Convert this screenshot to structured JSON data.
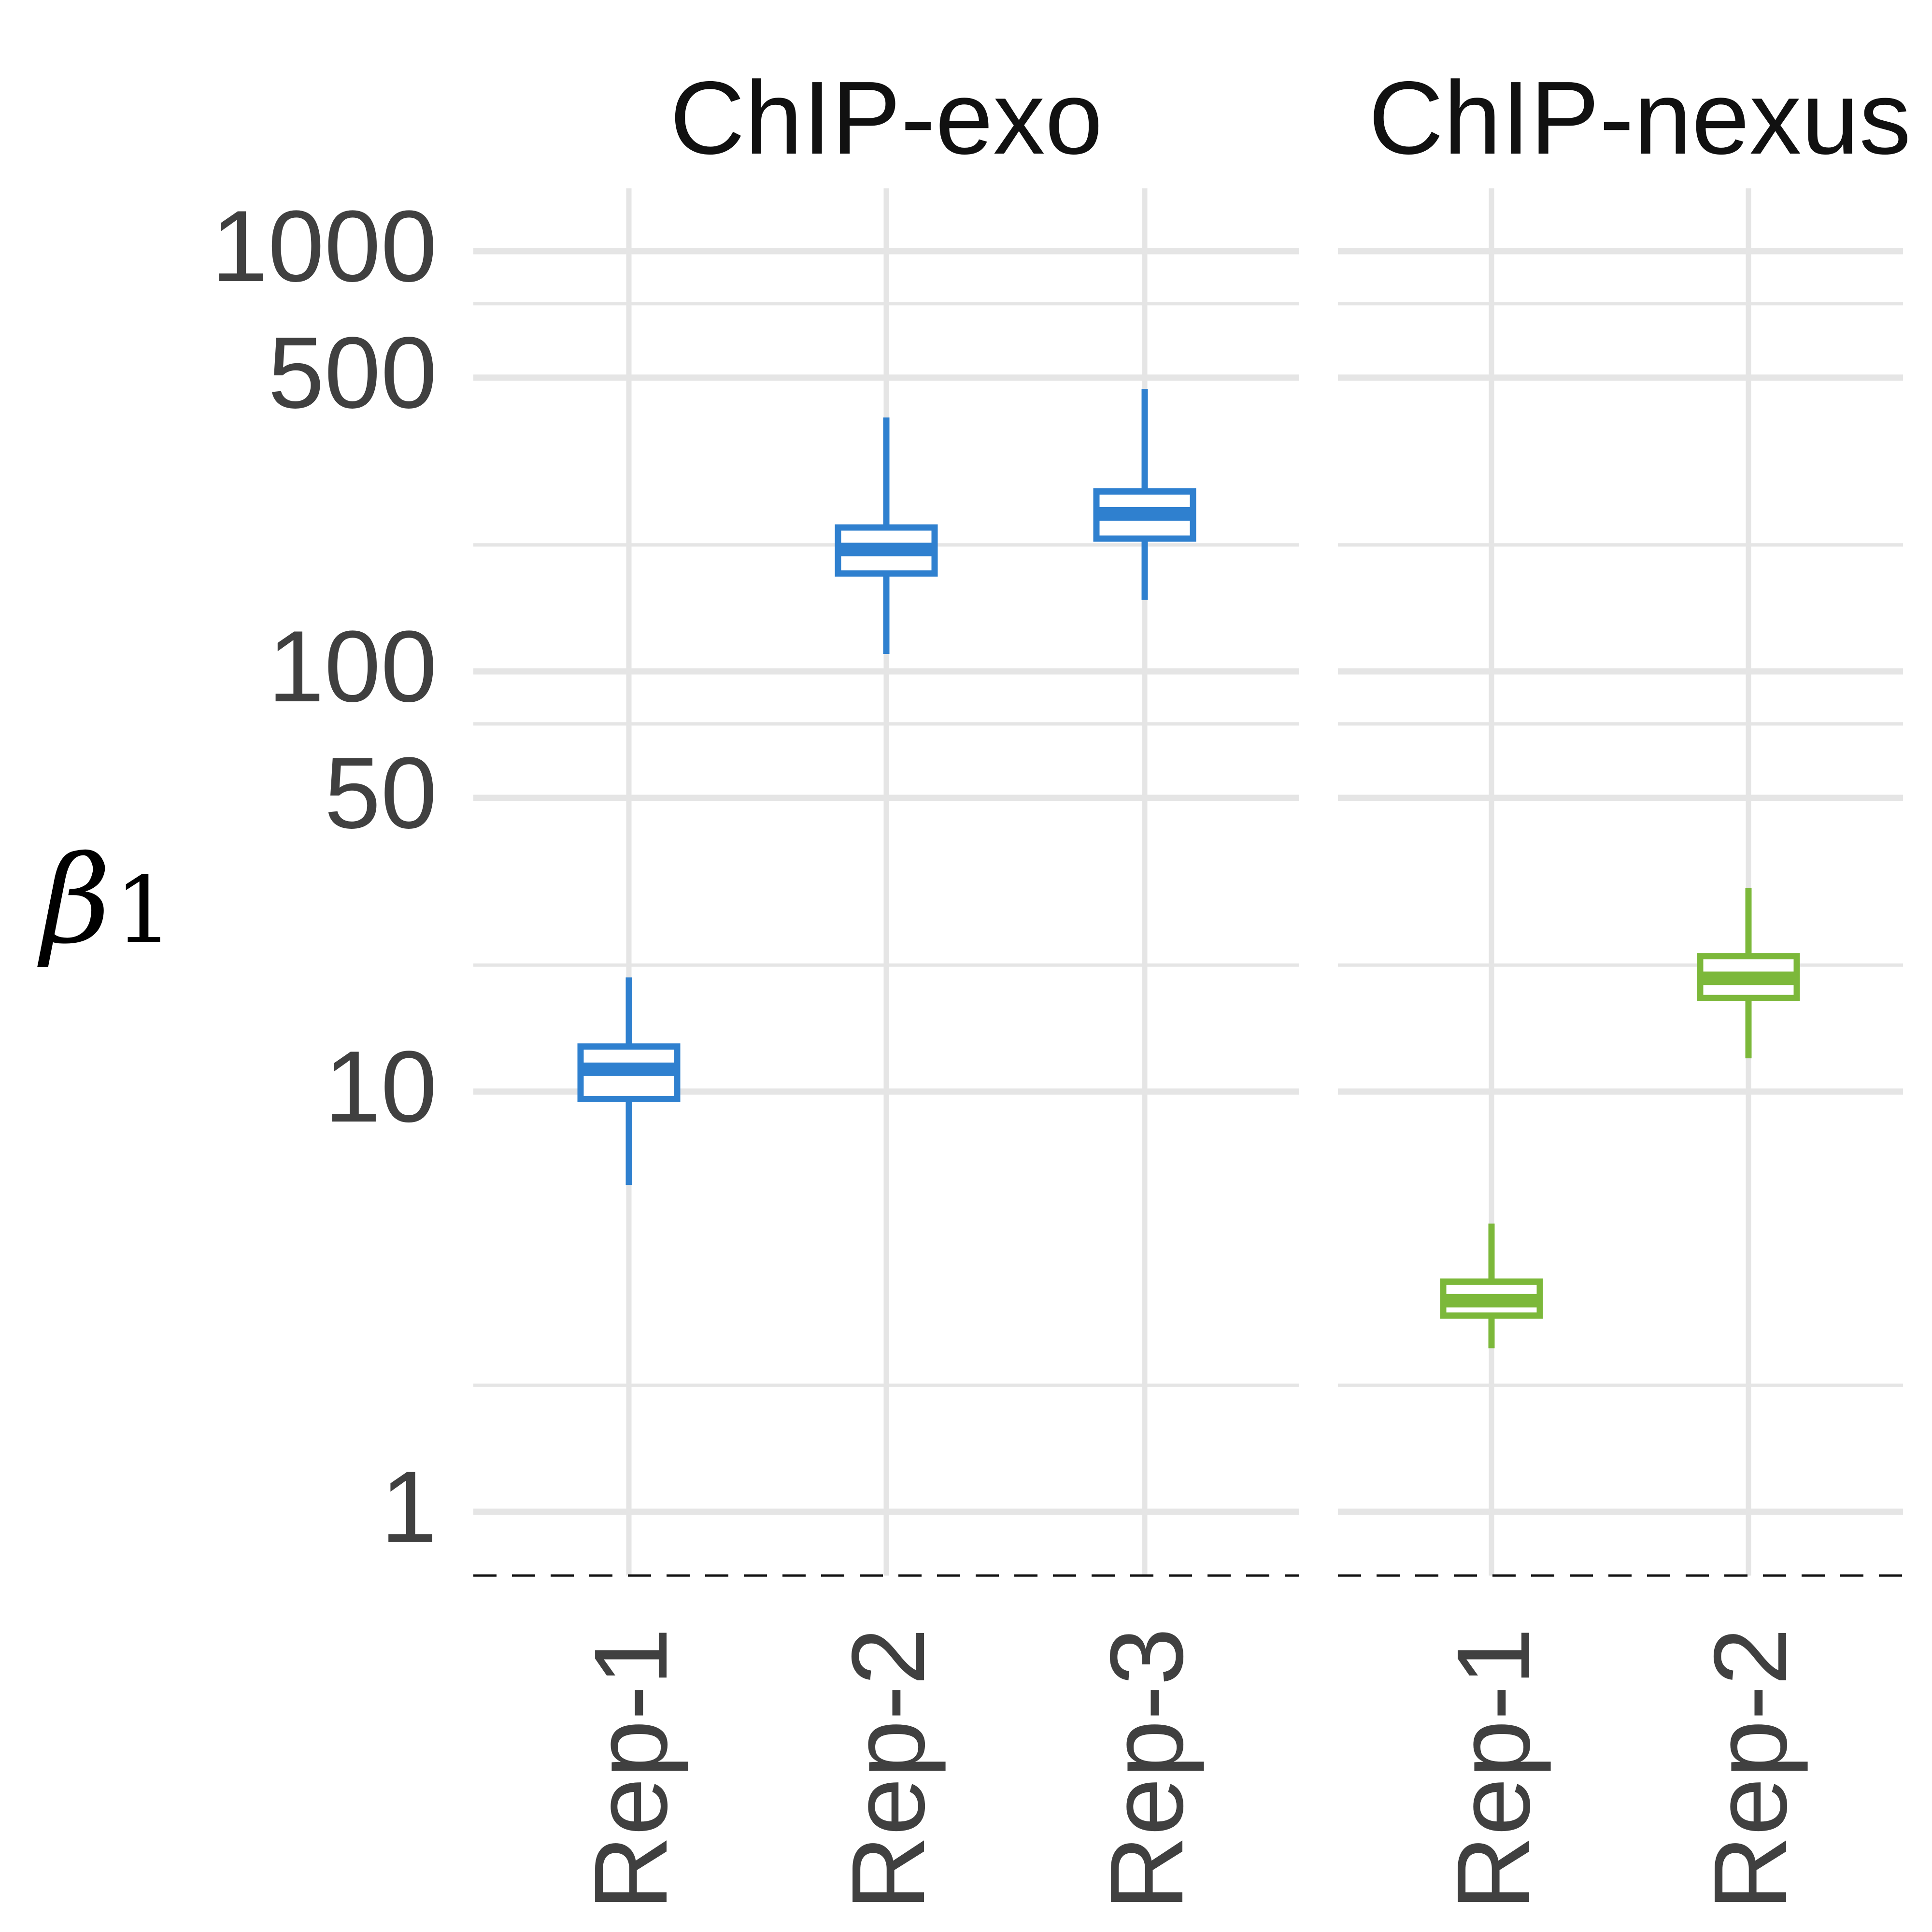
{
  "chart_data": {
    "type": "box",
    "y_label": "β",
    "y_label_subscript": "1",
    "y_scale": "log10",
    "y_ticks": [
      1,
      10,
      50,
      100,
      500,
      1000
    ],
    "y_tick_labels": [
      "1",
      "10",
      "50",
      "100",
      "500",
      "1000"
    ],
    "y_range": [
      0.72,
      1400
    ],
    "reference_line": {
      "value": 0.72,
      "style": "dashed"
    },
    "grid": true,
    "colors": {
      "ChIP-exo": "#2f80cf",
      "ChIP-nexus": "#7cb83a"
    },
    "facets": [
      {
        "name": "ChIP-exo",
        "categories": [
          "Rep-1",
          "Rep-2",
          "Rep-3"
        ],
        "boxes": [
          {
            "category": "Rep-1",
            "whisker_low": 6.0,
            "q1": 9.6,
            "median": 11.3,
            "q3": 12.8,
            "whisker_high": 18.7
          },
          {
            "category": "Rep-2",
            "whisker_low": 110,
            "q1": 171,
            "median": 195,
            "q3": 220,
            "whisker_high": 402
          },
          {
            "category": "Rep-3",
            "whisker_low": 148,
            "q1": 207,
            "median": 237,
            "q3": 268,
            "whisker_high": 470
          }
        ]
      },
      {
        "name": "ChIP-nexus",
        "categories": [
          "Rep-1",
          "Rep-2"
        ],
        "boxes": [
          {
            "category": "Rep-1",
            "whisker_low": 2.45,
            "q1": 2.93,
            "median": 3.18,
            "q3": 3.53,
            "whisker_high": 4.85
          },
          {
            "category": "Rep-2",
            "whisker_low": 12.0,
            "q1": 16.7,
            "median": 18.6,
            "q3": 21.0,
            "whisker_high": 30.5
          }
        ]
      }
    ]
  }
}
